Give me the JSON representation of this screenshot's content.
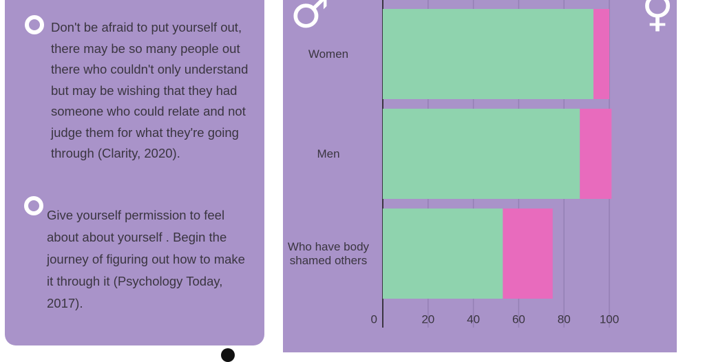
{
  "tips": [
    "Don't be afraid to put yourself out, there may be so many people out there who couldn't only understand but may be wishing that they had someone who could relate and not judge them for what they're going through  (Clarity, 2020).",
    "Give yourself permission to feel about about yourself . Begin the journey of figuring out how to make it through it (Psychology Today, 2017)."
  ],
  "chart_data": {
    "type": "stacked-barh",
    "categories": [
      "Women",
      "Men",
      "Who have body shamed others"
    ],
    "series": [
      {
        "name": "♂",
        "color": "#8fd3ae",
        "values": [
          93,
          87,
          53
        ]
      },
      {
        "name": "♀",
        "color": "#e86bbd",
        "values": [
          7,
          14,
          22
        ]
      }
    ],
    "xlim": [
      0,
      100
    ],
    "xticks": [
      0,
      20,
      40,
      60,
      80,
      100
    ],
    "grid": true
  }
}
